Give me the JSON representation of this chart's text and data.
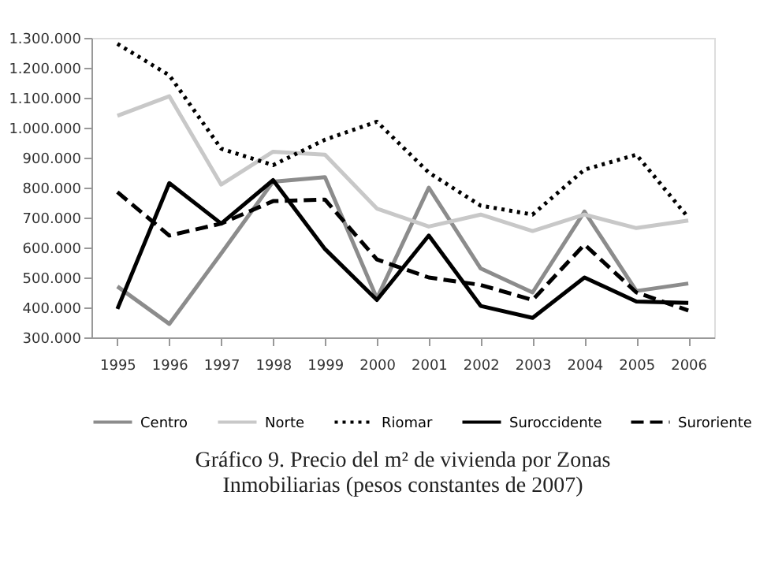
{
  "chart_data": {
    "type": "line",
    "annotations": [
      "Gráfico 9. Precio del m² de vivienda por Zonas",
      "Inmobiliarias (pesos constantes de 2007)"
    ],
    "categories": [
      "1995",
      "1996",
      "1997",
      "1998",
      "1999",
      "2000",
      "2001",
      "2002",
      "2003",
      "2004",
      "2005",
      "2006"
    ],
    "series": [
      {
        "name": "Centro",
        "color": "#8c8c8c",
        "line_style": "solid",
        "values": [
          470000,
          345000,
          580000,
          820000,
          835000,
          430000,
          800000,
          530000,
          450000,
          720000,
          455000,
          480000
        ]
      },
      {
        "name": "Norte",
        "color": "#c8c8c8",
        "line_style": "solid",
        "values": [
          1040000,
          1105000,
          810000,
          920000,
          910000,
          730000,
          670000,
          710000,
          655000,
          710000,
          665000,
          690000
        ]
      },
      {
        "name": "Riomar",
        "color": "#000000",
        "line_style": "dotted",
        "values": [
          1280000,
          1175000,
          930000,
          875000,
          960000,
          1020000,
          850000,
          740000,
          710000,
          860000,
          910000,
          700000
        ]
      },
      {
        "name": "Suroccidente",
        "color": "#000000",
        "line_style": "solid",
        "values": [
          395000,
          815000,
          680000,
          825000,
          595000,
          425000,
          640000,
          405000,
          365000,
          500000,
          420000,
          415000
        ]
      },
      {
        "name": "Suroriente",
        "color": "#000000",
        "line_style": "dashed",
        "values": [
          785000,
          640000,
          680000,
          755000,
          760000,
          560000,
          500000,
          475000,
          425000,
          610000,
          450000,
          390000
        ]
      }
    ],
    "ylim": [
      300000,
      1300000
    ],
    "yticks": [
      {
        "value": 300000,
        "label": "300.000"
      },
      {
        "value": 400000,
        "label": "400.000"
      },
      {
        "value": 500000,
        "label": "500.000"
      },
      {
        "value": 600000,
        "label": "600.000"
      },
      {
        "value": 700000,
        "label": "700.000"
      },
      {
        "value": 800000,
        "label": "800.000"
      },
      {
        "value": 900000,
        "label": "900.000"
      },
      {
        "value": 1000000,
        "label": "1.000.000"
      },
      {
        "value": 1100000,
        "label": "1.100.000"
      },
      {
        "value": 1200000,
        "label": "1.200.000"
      },
      {
        "value": 1300000,
        "label": "1.300.000"
      }
    ],
    "grid": false,
    "legend": "bottom",
    "marker": "none"
  }
}
